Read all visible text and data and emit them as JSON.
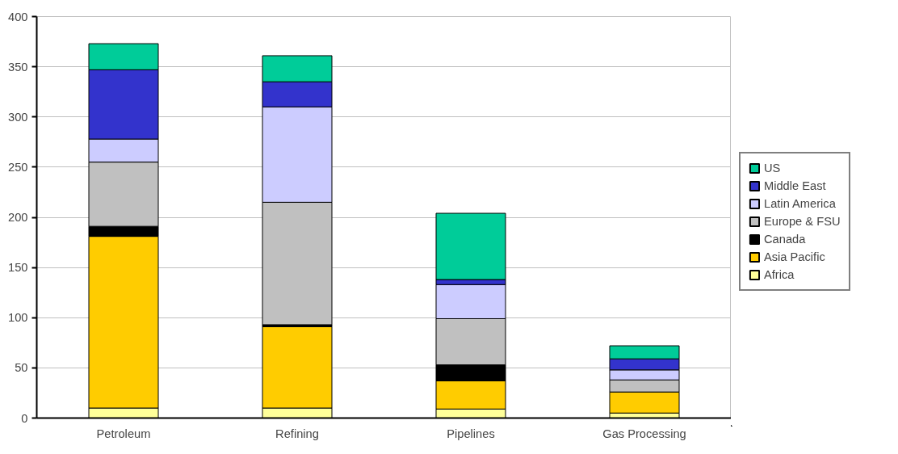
{
  "chart_data": {
    "type": "bar",
    "stacked": true,
    "categories": [
      "Petroleum",
      "Refining",
      "Pipelines",
      "Gas Processing"
    ],
    "series": [
      {
        "name": "Africa",
        "color": "#ffff99",
        "values": [
          10,
          10,
          9,
          5
        ]
      },
      {
        "name": "Asia Pacific",
        "color": "#ffcc00",
        "values": [
          171,
          81,
          28,
          21
        ]
      },
      {
        "name": "Canada",
        "color": "#000000",
        "values": [
          10,
          2,
          16,
          0
        ]
      },
      {
        "name": "Europe & FSU",
        "color": "#c0c0c0",
        "values": [
          64,
          122,
          46,
          12
        ]
      },
      {
        "name": "Latin America",
        "color": "#ccccff",
        "values": [
          23,
          95,
          34,
          10
        ]
      },
      {
        "name": "Middle East",
        "color": "#3333cc",
        "values": [
          69,
          25,
          5,
          11
        ]
      },
      {
        "name": "US",
        "color": "#00cc99",
        "values": [
          26,
          26,
          66,
          13
        ]
      }
    ],
    "ylim": [
      0,
      400
    ],
    "yticks": [
      0,
      50,
      100,
      150,
      200,
      250,
      300,
      350,
      400
    ],
    "grid": "y",
    "legend": "right"
  }
}
